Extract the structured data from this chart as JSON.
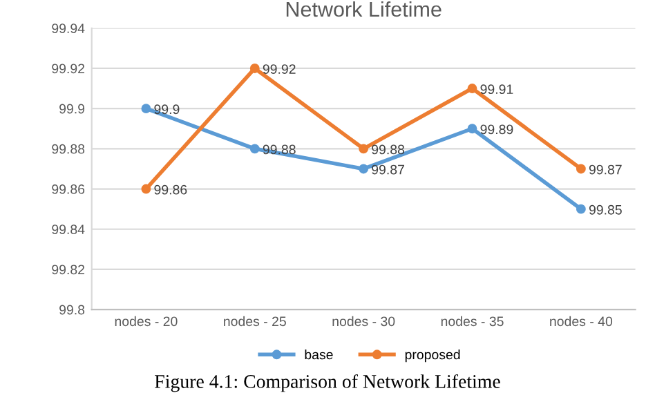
{
  "chart_data": {
    "type": "line",
    "title": "Network Lifetime",
    "categories": [
      "nodes - 20",
      "nodes - 25",
      "nodes - 30",
      "nodes - 35",
      "nodes - 40"
    ],
    "series": [
      {
        "name": "base",
        "color": "#5b9bd5",
        "values": [
          99.9,
          99.88,
          99.87,
          99.89,
          99.85
        ]
      },
      {
        "name": "proposed",
        "color": "#ed7d31",
        "values": [
          99.86,
          99.92,
          99.88,
          99.91,
          99.87
        ]
      }
    ],
    "ylim": [
      99.8,
      99.94
    ],
    "yticks": [
      99.8,
      99.82,
      99.84,
      99.86,
      99.88,
      99.9,
      99.92,
      99.94
    ],
    "grid": "y",
    "legend": "bottom",
    "marker": "circle",
    "line_style": "solid",
    "data_labels": true,
    "annotations": [
      "Figure 4.1: Comparison of Network Lifetime"
    ]
  }
}
